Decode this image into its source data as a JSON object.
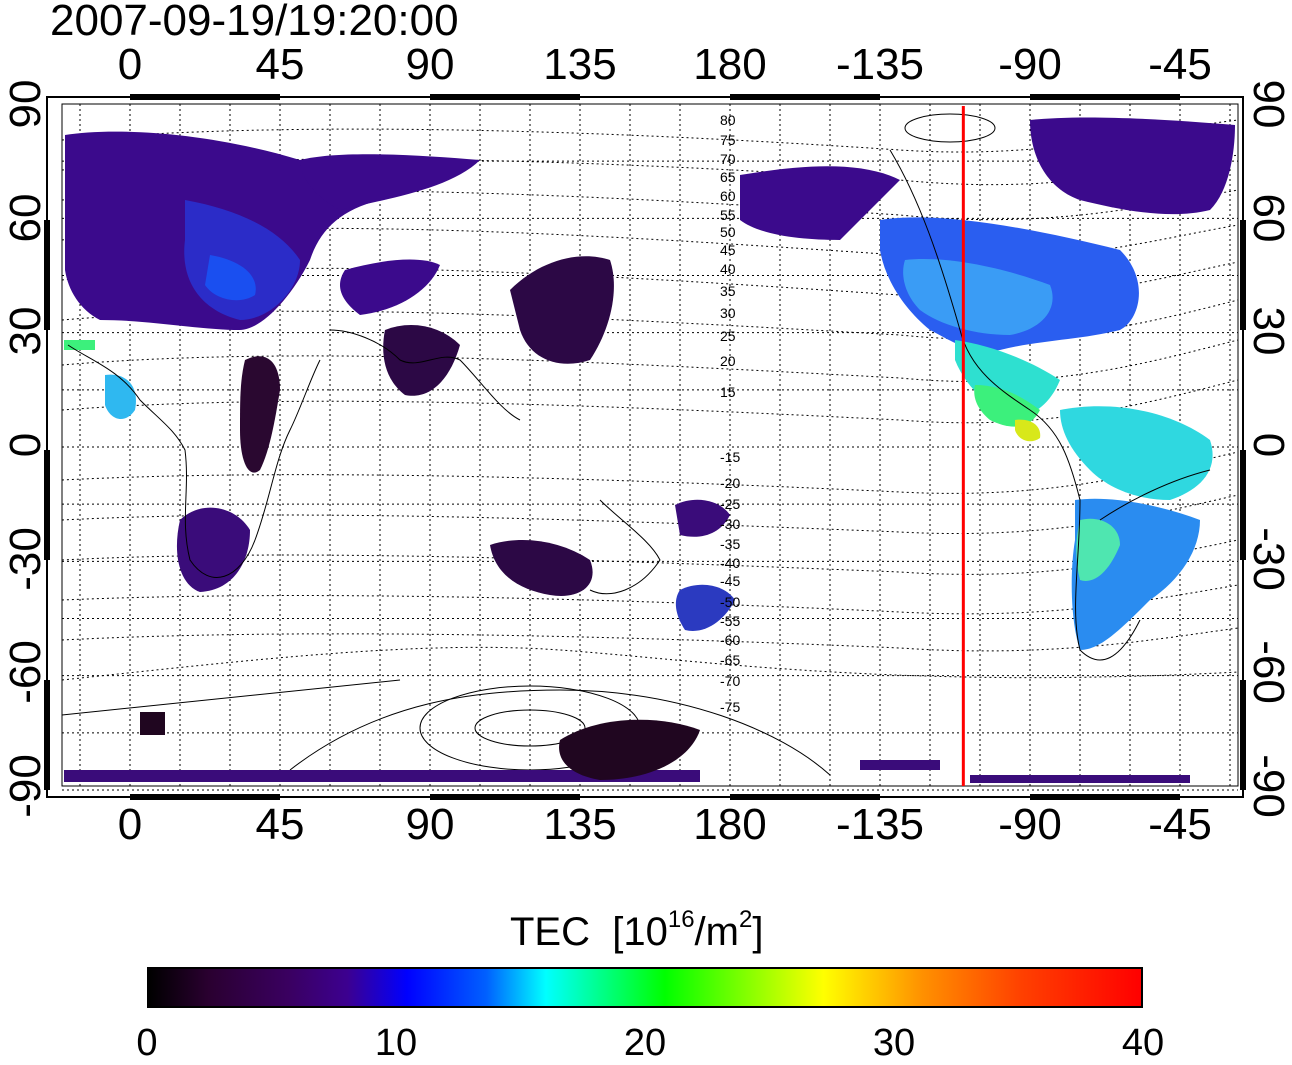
{
  "timestamp": "2007-09-19/19:20:00",
  "lon_ticks": [
    "0",
    "45",
    "90",
    "135",
    "180",
    "-135",
    "-90",
    "-45"
  ],
  "lat_ticks": [
    "90",
    "60",
    "30",
    "0",
    "-30",
    "-60",
    "-90"
  ],
  "contour_labels": [
    "80",
    "75",
    "70",
    "65",
    "60",
    "55",
    "50",
    "45",
    "40",
    "35",
    "30",
    "25",
    "20",
    "15",
    "-15",
    "-20",
    "-25",
    "-30",
    "-35",
    "-40",
    "-45",
    "-50",
    "-55",
    "-60",
    "-65",
    "-70",
    "-75"
  ],
  "colorbar": {
    "title": "TEC",
    "units_prefix": "[10",
    "units_exp1": "16",
    "units_mid": "/m",
    "units_exp2": "2",
    "units_suffix": "]",
    "ticks": [
      "0",
      "10",
      "20",
      "30",
      "40"
    ],
    "range": [
      0,
      40
    ]
  },
  "terminator_longitude": -110,
  "colors": {
    "terminator": "#ff0000",
    "frame": "#000000"
  }
}
